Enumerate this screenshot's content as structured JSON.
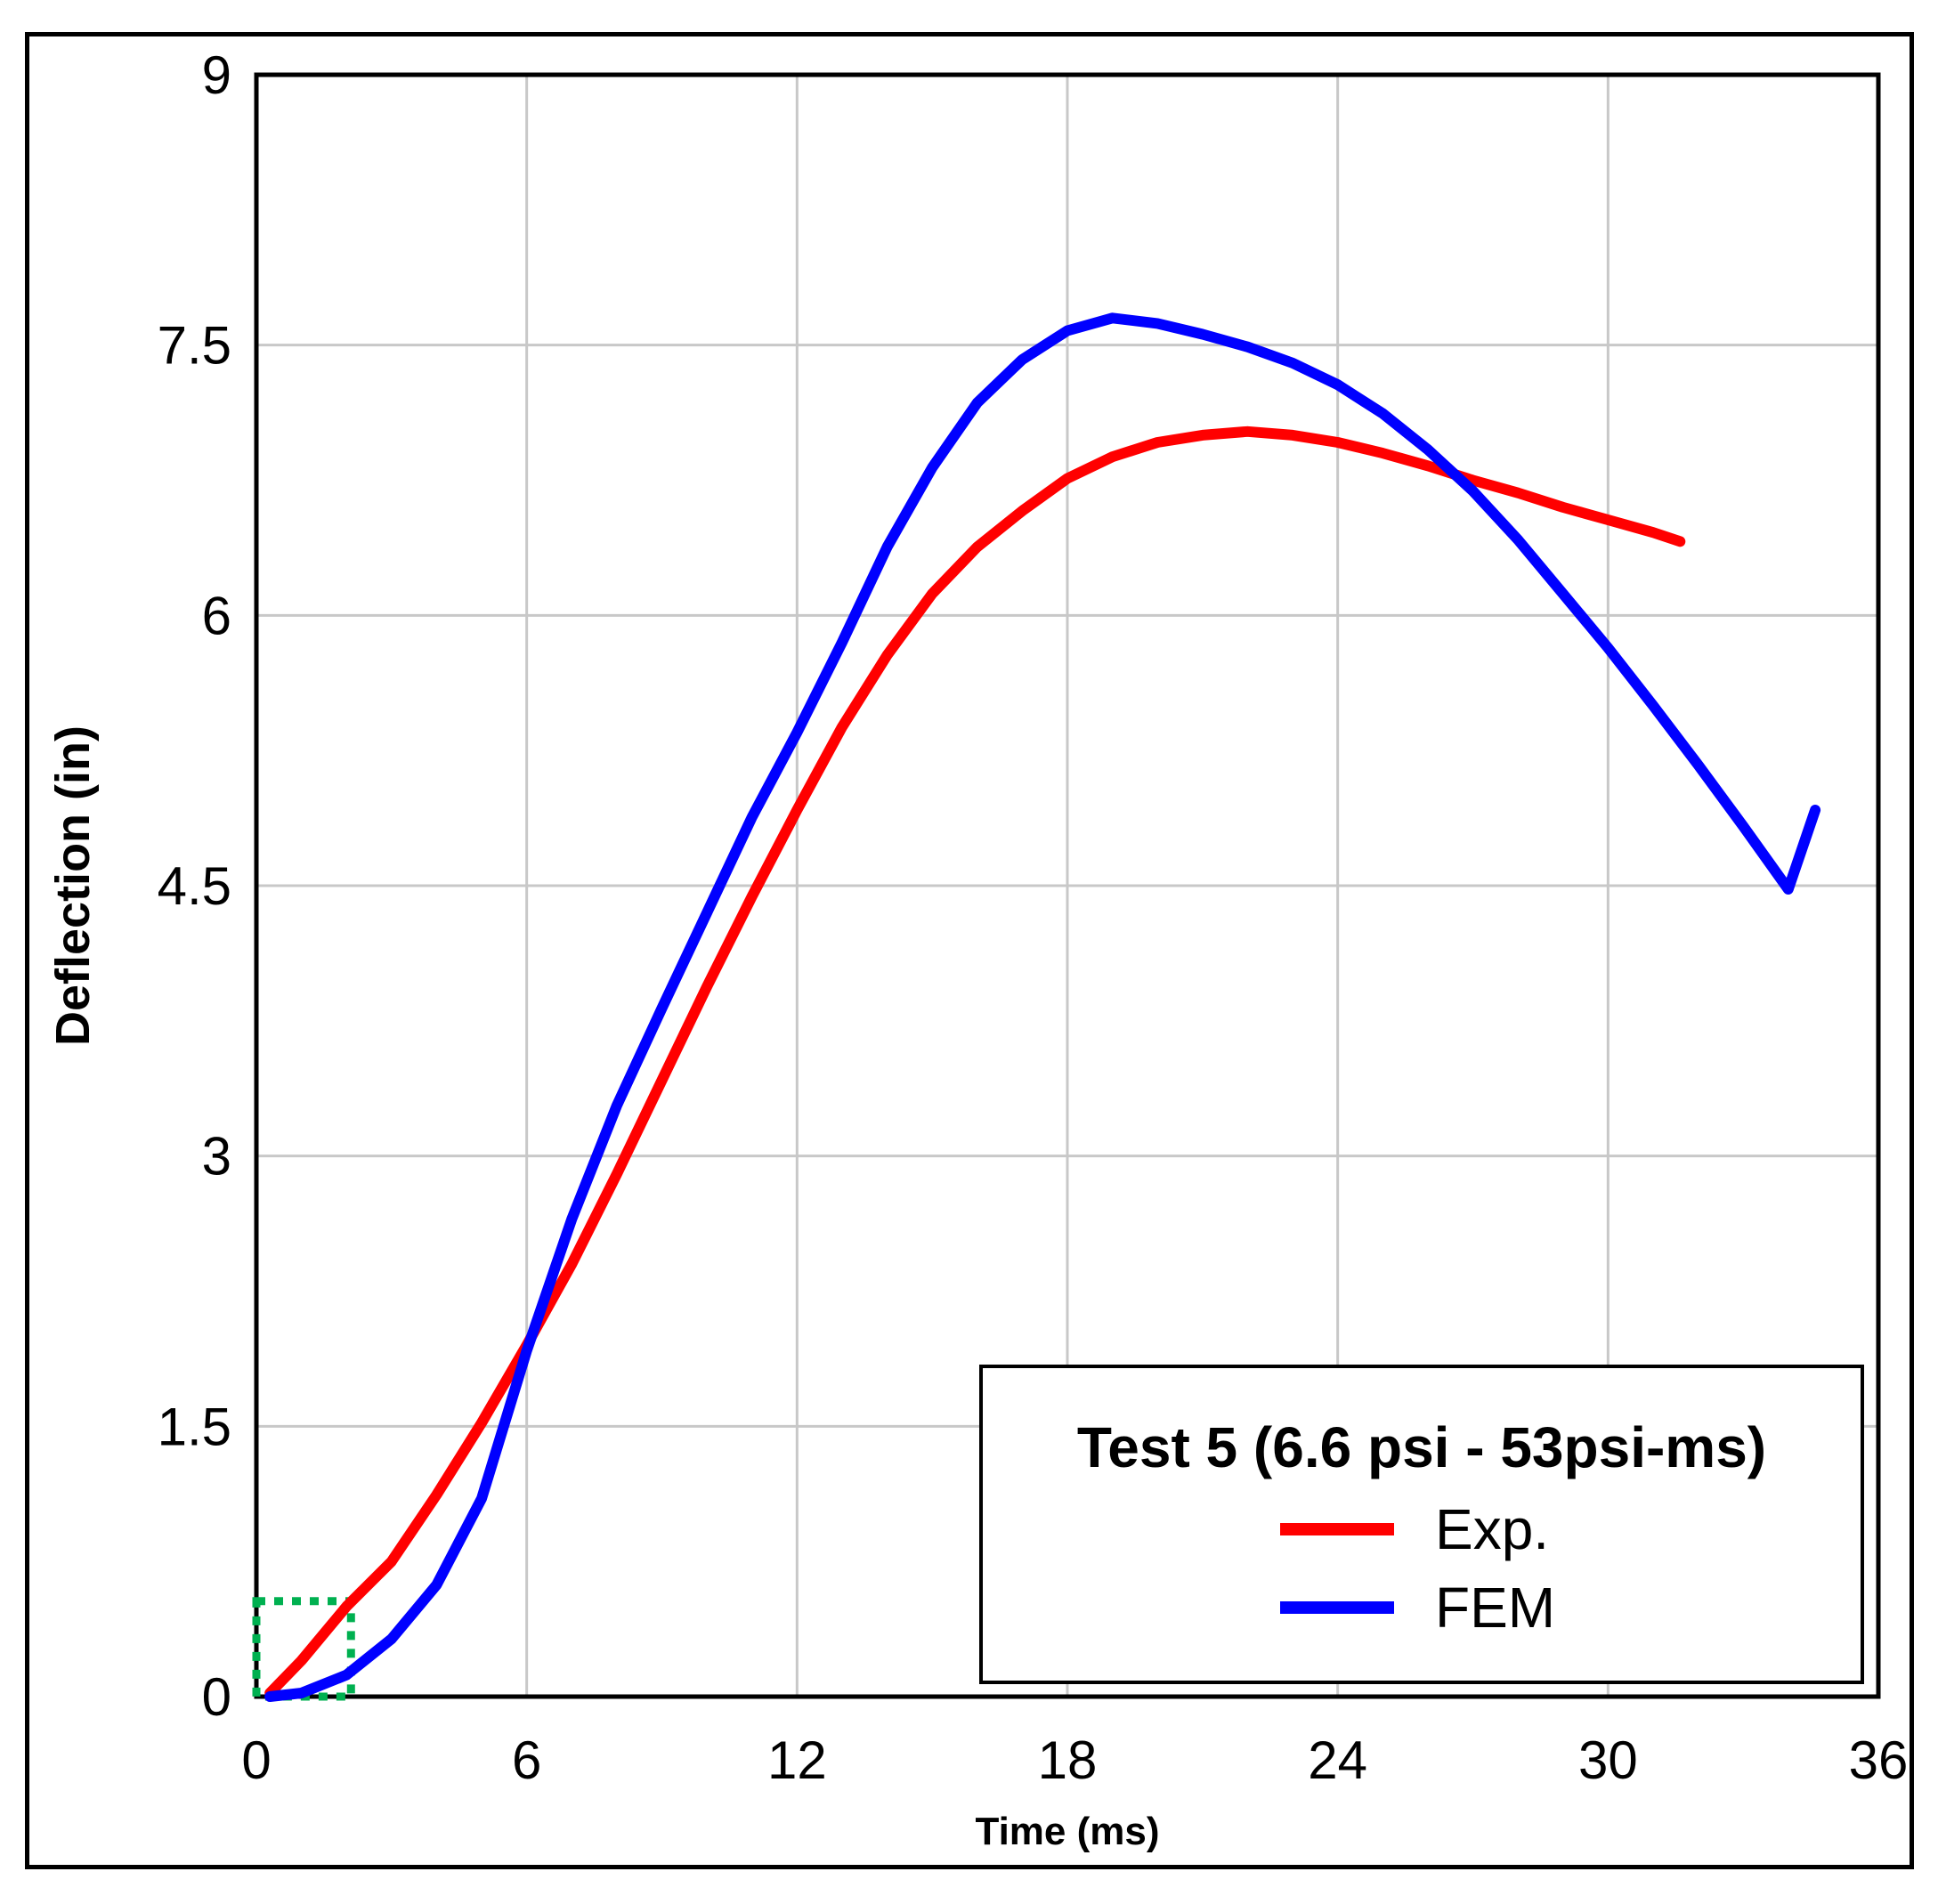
{
  "chart_data": {
    "type": "line",
    "title": "",
    "xlabel": "Time (ms)",
    "ylabel": "Deflection (in)",
    "xlim": [
      0,
      36
    ],
    "ylim": [
      0,
      9
    ],
    "xticks": [
      0,
      6,
      12,
      18,
      24,
      30,
      36
    ],
    "yticks": [
      0,
      1.5,
      3,
      4.5,
      6,
      7.5,
      9
    ],
    "xtick_labels": [
      "0",
      "6",
      "12",
      "18",
      "24",
      "30",
      "36"
    ],
    "ytick_labels": [
      "0",
      "1.5",
      "3",
      "4.5",
      "6",
      "7.5",
      "9"
    ],
    "grid": true,
    "legend": {
      "title": "Test 5 (6.6 psi - 53psi-ms)",
      "position": "bottom-right"
    },
    "highlight_box": {
      "style": "dotted",
      "color": "#00B050",
      "x_range": [
        0,
        2.1
      ],
      "y_range": [
        0,
        0.53
      ]
    },
    "series": [
      {
        "name": "Exp.",
        "color": "#FF0000",
        "x": [
          0.3,
          1,
          2,
          3,
          4,
          5,
          6,
          7,
          8,
          9,
          10,
          11,
          12,
          13,
          14,
          15,
          16,
          17,
          18,
          19,
          20,
          21,
          22,
          23,
          24,
          25,
          26,
          27,
          28,
          29,
          30,
          31,
          31.6
        ],
        "y": [
          0.02,
          0.2,
          0.5,
          0.75,
          1.12,
          1.52,
          1.95,
          2.4,
          2.9,
          3.42,
          3.94,
          4.44,
          4.92,
          5.38,
          5.78,
          6.12,
          6.38,
          6.58,
          6.76,
          6.88,
          6.96,
          7.0,
          7.02,
          7.0,
          6.96,
          6.9,
          6.83,
          6.75,
          6.68,
          6.6,
          6.53,
          6.46,
          6.41
        ]
      },
      {
        "name": "FEM",
        "color": "#0000FF",
        "x": [
          0.3,
          1,
          2,
          3,
          4,
          5,
          6,
          7,
          8,
          9,
          10,
          11,
          12,
          13,
          14,
          15,
          16,
          17,
          18,
          19,
          20,
          21,
          22,
          23,
          24,
          25,
          26,
          27,
          28,
          29,
          30,
          31,
          32,
          33,
          34,
          34.6
        ],
        "y": [
          0.0,
          0.02,
          0.12,
          0.32,
          0.62,
          1.1,
          1.92,
          2.65,
          3.28,
          3.82,
          4.35,
          4.88,
          5.35,
          5.85,
          6.38,
          6.82,
          7.18,
          7.42,
          7.58,
          7.65,
          7.62,
          7.56,
          7.49,
          7.4,
          7.28,
          7.12,
          6.92,
          6.69,
          6.42,
          6.12,
          5.82,
          5.5,
          5.17,
          4.83,
          4.48,
          4.92
        ]
      }
    ]
  }
}
